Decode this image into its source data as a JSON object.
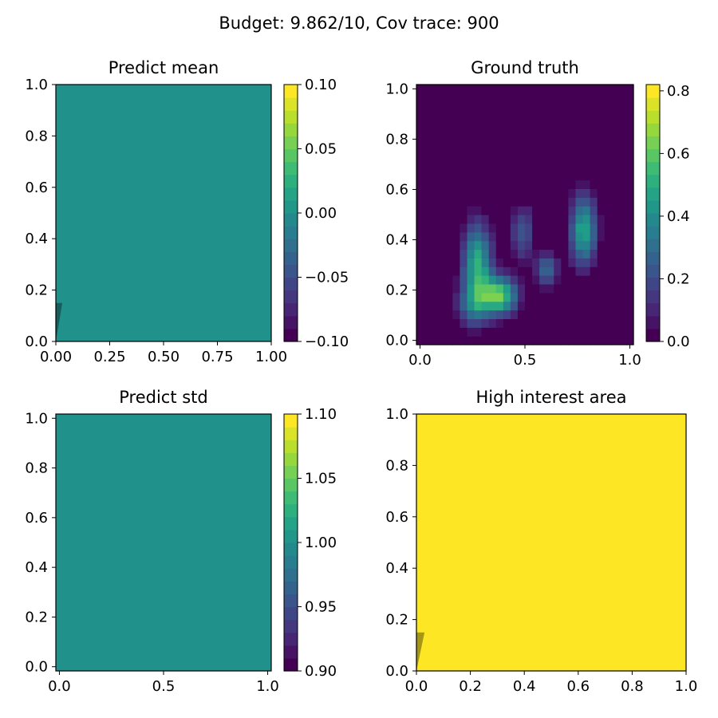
{
  "figure": {
    "suptitle": "Budget: 9.862/10,  Cov trace: 900"
  },
  "chart_data": [
    {
      "type": "heatmap",
      "title": "Predict mean",
      "xlabel": "",
      "ylabel": "",
      "xlim": [
        0,
        1
      ],
      "ylim": [
        0,
        1
      ],
      "x_ticks": [
        "0.00",
        "0.25",
        "0.50",
        "0.75",
        "1.00"
      ],
      "y_ticks": [
        "0.0",
        "0.2",
        "0.4",
        "0.6",
        "0.8",
        "1.0"
      ],
      "fill_value": 0,
      "fill_color": "#21918c",
      "colorbar": {
        "range": [
          -0.1,
          0.1
        ],
        "ticks": [
          "−0.10",
          "−0.05",
          "0.00",
          "0.05",
          "0.10"
        ],
        "colormap": "viridis",
        "levels": 20
      },
      "overlay": {
        "shape": "thin wedge",
        "color": "#000000",
        "opacity": 0.35,
        "points": [
          [
            0,
            0
          ],
          [
            0.0,
            0.15
          ],
          [
            0.03,
            0.15
          ]
        ]
      }
    },
    {
      "type": "heatmap",
      "title": "Ground truth",
      "xlabel": "",
      "ylabel": "",
      "grid_size": [
        30,
        30
      ],
      "extent": [
        -0.017,
        1.017
      ],
      "x_ticks": [
        "0.0",
        "0.5",
        "1.0"
      ],
      "y_ticks": [
        "0.0",
        "0.2",
        "0.4",
        "0.6",
        "0.8",
        "1.0"
      ],
      "background_value": 0,
      "colorbar": {
        "range": [
          0,
          0.82
        ],
        "ticks": [
          "0.0",
          "0.2",
          "0.4",
          "0.6",
          "0.8"
        ],
        "colormap": "viridis",
        "levels": 20
      },
      "blobs": [
        {
          "center": [
            0.28,
            0.3
          ],
          "sigma": [
            0.045,
            0.11
          ],
          "amp": 0.55
        },
        {
          "center": [
            0.38,
            0.19
          ],
          "sigma": [
            0.055,
            0.05
          ],
          "amp": 0.65
        },
        {
          "center": [
            0.26,
            0.15
          ],
          "sigma": [
            0.05,
            0.05
          ],
          "amp": 0.25
        },
        {
          "center": [
            0.49,
            0.43
          ],
          "sigma": [
            0.035,
            0.07
          ],
          "amp": 0.25
        },
        {
          "center": [
            0.6,
            0.29
          ],
          "sigma": [
            0.035,
            0.045
          ],
          "amp": 0.3
        },
        {
          "center": [
            0.77,
            0.44
          ],
          "sigma": [
            0.04,
            0.09
          ],
          "amp": 0.52
        }
      ]
    },
    {
      "type": "heatmap",
      "title": "Predict std",
      "xlabel": "",
      "ylabel": "",
      "xlim": [
        -0.017,
        1.017
      ],
      "ylim": [
        -0.017,
        1.017
      ],
      "x_ticks": [
        "0.0",
        "0.5",
        "1.0"
      ],
      "y_ticks": [
        "0.0",
        "0.2",
        "0.4",
        "0.6",
        "0.8",
        "1.0"
      ],
      "fill_value": 1.0,
      "fill_color": "#21918c",
      "colorbar": {
        "range": [
          0.9,
          1.1
        ],
        "ticks": [
          "0.90",
          "0.95",
          "1.00",
          "1.05",
          "1.10"
        ],
        "colormap": "viridis",
        "levels": 20
      }
    },
    {
      "type": "heatmap",
      "title": "High interest area",
      "xlabel": "",
      "ylabel": "",
      "xlim": [
        0,
        1
      ],
      "ylim": [
        0,
        1
      ],
      "x_ticks": [
        "0.0",
        "0.2",
        "0.4",
        "0.6",
        "0.8",
        "1.0"
      ],
      "y_ticks": [
        "0.0",
        "0.2",
        "0.4",
        "0.6",
        "0.8",
        "1.0"
      ],
      "fill_color": "#fde725",
      "overlay": {
        "shape": "thin wedge",
        "color": "#000000",
        "opacity": 0.35,
        "points": [
          [
            0,
            0
          ],
          [
            0.0,
            0.15
          ],
          [
            0.03,
            0.15
          ]
        ]
      }
    }
  ],
  "colors": {
    "viridis_dark": "#440154",
    "viridis_mid": "#21918c",
    "viridis_yellow": "#fde725"
  }
}
